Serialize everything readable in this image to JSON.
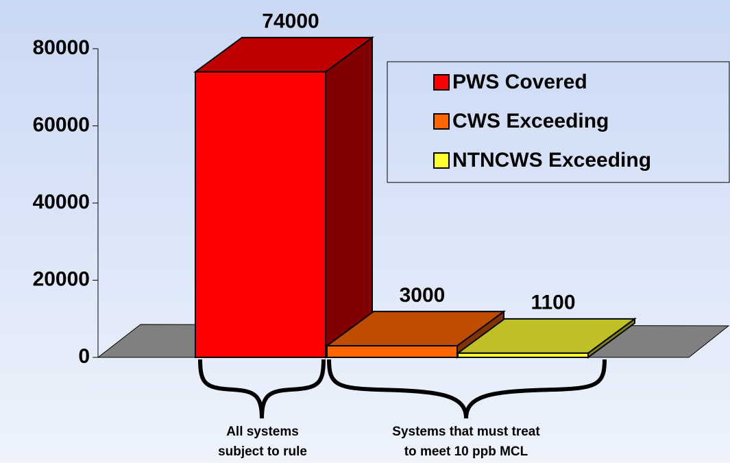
{
  "chart_data": {
    "type": "bar3d",
    "categories": [
      null
    ],
    "series": [
      {
        "name": "PWS Covered",
        "color": "#ff0000",
        "values": [
          74000
        ]
      },
      {
        "name": "CWS Exceeding",
        "color": "#ff6600",
        "values": [
          3000
        ]
      },
      {
        "name": "NTNCWS Exceeding",
        "color": "#ffff33",
        "values": [
          1100
        ]
      }
    ],
    "ylim": [
      0,
      80000
    ],
    "yticks": [
      0,
      20000,
      40000,
      60000,
      80000
    ],
    "annotations": [
      [
        "All systems",
        "subject to rule"
      ],
      [
        "Systems that must treat",
        "to meet 10 ppb MCL"
      ]
    ]
  }
}
